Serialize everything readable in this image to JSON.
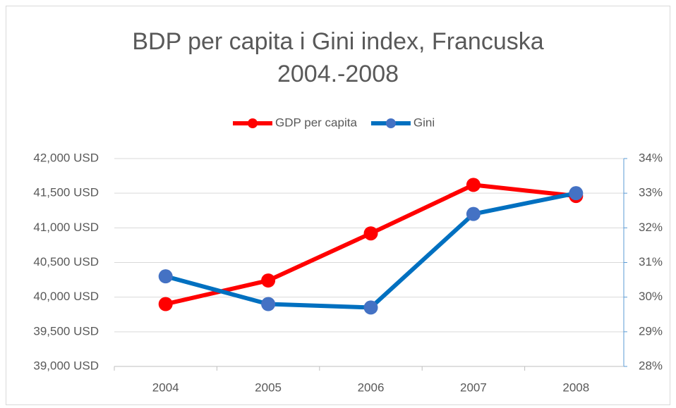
{
  "chart_data": {
    "type": "line",
    "title": "BDP per capita i Gini index, Francuska 2004.-2008",
    "categories": [
      "2004",
      "2005",
      "2006",
      "2007",
      "2008"
    ],
    "series": [
      {
        "name": "GDP per capita",
        "color": "#ff0000",
        "values": [
          39900,
          40240,
          40920,
          41620,
          41460
        ]
      },
      {
        "name": "Gini",
        "color": "#0070c0",
        "marker_color": "#4472c4",
        "axis": "y2",
        "values": [
          30.6,
          29.8,
          29.7,
          32.4,
          33.0
        ]
      }
    ],
    "ylim": [
      39000,
      42000
    ],
    "yticks": [
      {
        "value": 39000,
        "label": "39,000 USD"
      },
      {
        "value": 39500,
        "label": "39,500 USD"
      },
      {
        "value": 40000,
        "label": "40,000 USD"
      },
      {
        "value": 40500,
        "label": "40,500 USD"
      },
      {
        "value": 41000,
        "label": "41,000 USD"
      },
      {
        "value": 41500,
        "label": "41,500 USD"
      },
      {
        "value": 42000,
        "label": "42,000 USD"
      }
    ],
    "y2lim": [
      28,
      34
    ],
    "y2ticks": [
      {
        "value": 28,
        "label": "28%"
      },
      {
        "value": 29,
        "label": "29%"
      },
      {
        "value": 30,
        "label": "30%"
      },
      {
        "value": 31,
        "label": "31%"
      },
      {
        "value": 32,
        "label": "32%"
      },
      {
        "value": 33,
        "label": "33%"
      },
      {
        "value": 34,
        "label": "34%"
      }
    ],
    "grid": true,
    "legend": "top"
  }
}
